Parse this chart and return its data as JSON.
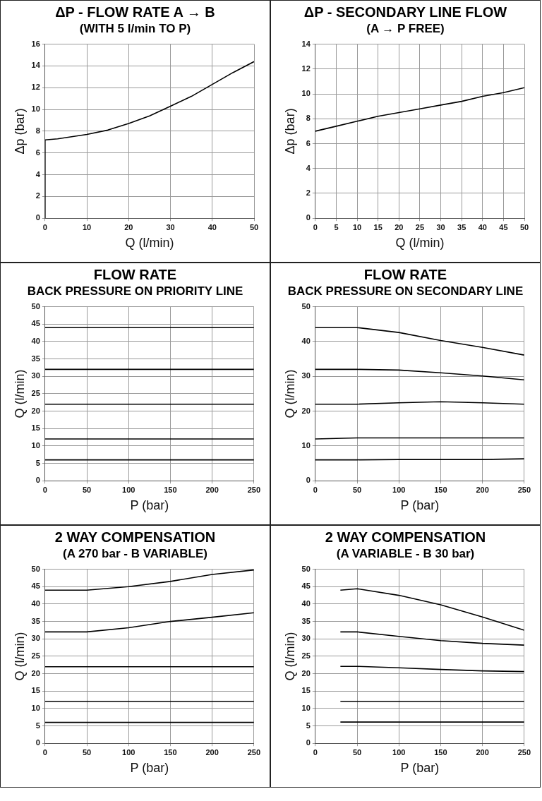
{
  "chart_data": [
    {
      "type": "line",
      "title": "ΔP - FLOW RATE A → B",
      "subtitle": "(WITH 5 l/min TO P)",
      "xlabel": "Q (l/min)",
      "ylabel": "Δp (bar)",
      "xlim": [
        0,
        50
      ],
      "xticks": [
        0,
        10,
        20,
        30,
        40,
        50
      ],
      "ylim": [
        0,
        16
      ],
      "yticks": [
        0,
        2,
        4,
        6,
        8,
        10,
        12,
        14,
        16
      ],
      "grid": true,
      "x": [
        0,
        0,
        3,
        10,
        15,
        20,
        25,
        30,
        35,
        40,
        45,
        50
      ],
      "series": [
        {
          "color": "#000000",
          "values": [
            0,
            7.2,
            7.3,
            7.7,
            8.1,
            8.7,
            9.4,
            10.3,
            11.2,
            12.3,
            13.4,
            14.4
          ]
        }
      ]
    },
    {
      "type": "line",
      "title": "ΔP - SECONDARY LINE FLOW",
      "subtitle": "(A → P FREE)",
      "xlabel": "Q (l/min)",
      "ylabel": "Δp (bar)",
      "xlim": [
        0,
        50
      ],
      "xticks": [
        0,
        5,
        10,
        15,
        20,
        25,
        30,
        35,
        40,
        45,
        50
      ],
      "ylim": [
        0,
        14
      ],
      "yticks": [
        0,
        2,
        4,
        6,
        8,
        10,
        12,
        14
      ],
      "grid": true,
      "x": [
        0,
        5,
        10,
        15,
        20,
        25,
        30,
        35,
        40,
        45,
        50
      ],
      "series": [
        {
          "color": "#000000",
          "values": [
            7.0,
            7.4,
            7.8,
            8.2,
            8.5,
            8.8,
            9.1,
            9.4,
            9.8,
            10.1,
            10.5
          ]
        }
      ]
    },
    {
      "type": "line",
      "title": "FLOW RATE",
      "subtitle": "BACK PRESSURE ON PRIORITY LINE",
      "xlabel": "P (bar)",
      "ylabel": "Q (l/min)",
      "xlim": [
        0,
        250
      ],
      "xticks": [
        0,
        50,
        100,
        150,
        200,
        250
      ],
      "ylim": [
        0,
        50
      ],
      "yticks": [
        0,
        5,
        10,
        15,
        20,
        25,
        30,
        35,
        40,
        45,
        50
      ],
      "grid": true,
      "x": [
        0,
        250
      ],
      "series": [
        {
          "color": "#000000",
          "values": [
            44,
            44
          ]
        },
        {
          "color": "#000000",
          "values": [
            32,
            32
          ]
        },
        {
          "color": "#000000",
          "values": [
            22,
            22
          ]
        },
        {
          "color": "#000000",
          "values": [
            12,
            12
          ]
        },
        {
          "color": "#000000",
          "values": [
            6,
            6
          ]
        }
      ]
    },
    {
      "type": "line",
      "title": "FLOW RATE",
      "subtitle": "BACK PRESSURE ON SECONDARY LINE",
      "xlabel": "P (bar)",
      "ylabel": "Q (l/min)",
      "xlim": [
        0,
        250
      ],
      "xticks": [
        0,
        50,
        100,
        150,
        200,
        250
      ],
      "ylim": [
        0,
        50
      ],
      "yticks": [
        0,
        10,
        20,
        30,
        40,
        50
      ],
      "grid": true,
      "x": [
        0,
        50,
        100,
        150,
        200,
        250
      ],
      "series": [
        {
          "color": "#000000",
          "values": [
            44,
            44,
            42.6,
            40.3,
            38.3,
            36.1
          ]
        },
        {
          "color": "#000000",
          "values": [
            32,
            32,
            31.8,
            31,
            30.1,
            29
          ]
        },
        {
          "color": "#000000",
          "values": [
            22,
            22,
            22.4,
            22.7,
            22.4,
            22
          ]
        },
        {
          "color": "#000000",
          "values": [
            12,
            12.3,
            12.3,
            12.3,
            12.3,
            12.3
          ]
        },
        {
          "color": "#000000",
          "values": [
            6,
            6,
            6.1,
            6.1,
            6.1,
            6.3
          ]
        }
      ]
    },
    {
      "type": "line",
      "title": "2 WAY COMPENSATION",
      "subtitle": "(A 270 bar - B VARIABLE)",
      "xlabel": "P (bar)",
      "ylabel": "Q (l/min)",
      "xlim": [
        0,
        250
      ],
      "xticks": [
        0,
        50,
        100,
        150,
        200,
        250
      ],
      "ylim": [
        0,
        50
      ],
      "yticks": [
        0,
        5,
        10,
        15,
        20,
        25,
        30,
        35,
        40,
        45,
        50
      ],
      "grid": true,
      "x": [
        0,
        50,
        100,
        150,
        200,
        250
      ],
      "series": [
        {
          "color": "#000000",
          "values": [
            44,
            44,
            45,
            46.5,
            48.5,
            49.8
          ]
        },
        {
          "color": "#000000",
          "values": [
            32,
            32,
            33.2,
            35,
            36.2,
            37.5
          ]
        },
        {
          "color": "#000000",
          "values": [
            22,
            22,
            22,
            22,
            22,
            22
          ]
        },
        {
          "color": "#000000",
          "values": [
            12,
            12,
            12,
            12,
            12,
            12
          ]
        },
        {
          "color": "#000000",
          "values": [
            6,
            6,
            6,
            6,
            6,
            6
          ]
        }
      ]
    },
    {
      "type": "line",
      "title": "2 WAY COMPENSATION",
      "subtitle": "(A VARIABLE - B 30 bar)",
      "xlabel": "P (bar)",
      "ylabel": "Q (l/min)",
      "xlim": [
        0,
        250
      ],
      "xticks": [
        0,
        50,
        100,
        150,
        200,
        250
      ],
      "ylim": [
        0,
        50
      ],
      "yticks": [
        0,
        5,
        10,
        15,
        20,
        25,
        30,
        35,
        40,
        45,
        50
      ],
      "grid": true,
      "x": [
        30,
        50,
        100,
        150,
        200,
        250
      ],
      "series": [
        {
          "color": "#000000",
          "values": [
            44,
            44.4,
            42.5,
            39.8,
            36.3,
            32.5
          ]
        },
        {
          "color": "#000000",
          "values": [
            32,
            32,
            30.7,
            29.5,
            28.7,
            28.2
          ]
        },
        {
          "color": "#000000",
          "values": [
            22.1,
            22.1,
            21.7,
            21.2,
            20.8,
            20.6
          ]
        },
        {
          "color": "#000000",
          "values": [
            12,
            12,
            12,
            12,
            12,
            12
          ]
        },
        {
          "color": "#000000",
          "values": [
            6.1,
            6.1,
            6.1,
            6.1,
            6.1,
            6.1
          ]
        }
      ]
    }
  ]
}
